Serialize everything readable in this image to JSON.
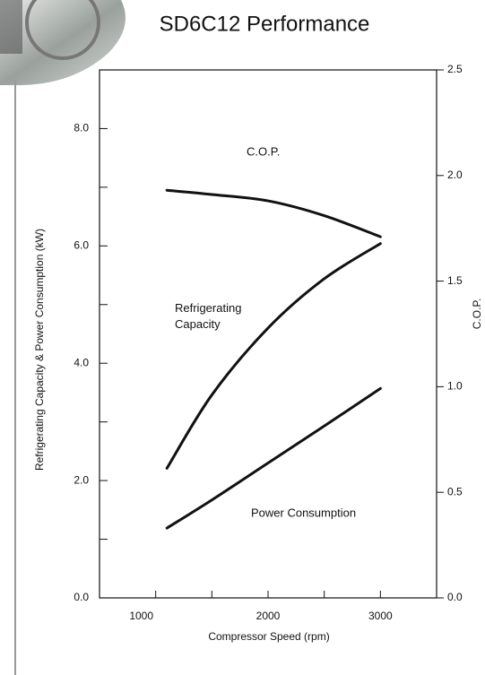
{
  "chart_data": {
    "type": "line",
    "title": "SD6C12 Performance",
    "x_label": "Compressor Speed (rpm)",
    "y_label": "Refrigerating Capacity & Power Consumption (kW)",
    "y2_label": "C.O.P.",
    "x": [
      1100,
      1500,
      2000,
      2500,
      3000
    ],
    "xlim": [
      500,
      3500
    ],
    "xticks": [
      1000,
      2000,
      3000
    ],
    "x_minor_ticks": [
      1500,
      2500
    ],
    "ylim": [
      0,
      9
    ],
    "yticks": [
      {
        "value": 0,
        "label": "0.0"
      },
      {
        "value": 2,
        "label": "2.0"
      },
      {
        "value": 4,
        "label": "4.0"
      },
      {
        "value": 6,
        "label": "6.0"
      },
      {
        "value": 8,
        "label": "8.0"
      }
    ],
    "y_minor_ticks": [
      1,
      3,
      5,
      7
    ],
    "y2lim": [
      0,
      2.5
    ],
    "y2ticks": [
      {
        "value": 0,
        "label": "0.0"
      },
      0.5,
      {
        "value": 1,
        "label": "1.0"
      },
      1.5,
      {
        "value": 2,
        "label": "2.0"
      },
      2.5
    ],
    "series": [
      {
        "name": "C.O.P.",
        "color": "#111111",
        "axis": "y2",
        "values": [
          1.93,
          1.91,
          1.88,
          1.81,
          1.71
        ]
      },
      {
        "name": "Refrigerating Capacity",
        "color": "#111111",
        "values": [
          2.21,
          3.46,
          4.6,
          5.44,
          6.04
        ]
      },
      {
        "name": "Power Consumption",
        "color": "#111111",
        "values": [
          1.19,
          1.67,
          2.3,
          2.93,
          3.57
        ]
      }
    ]
  }
}
